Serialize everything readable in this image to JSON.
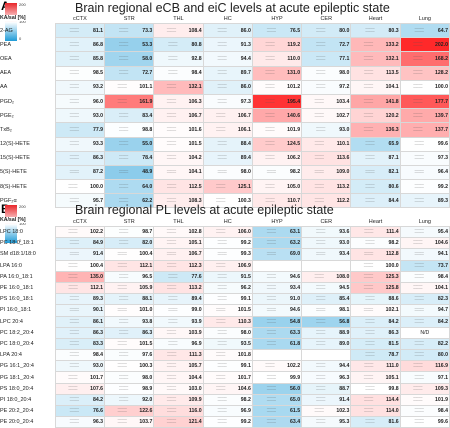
{
  "panelA": {
    "letter": "A",
    "title": "Brain regional eCB and eiC levels at acute epileptic state",
    "scale": {
      "max": "200",
      "mid": "100",
      "min": "0",
      "label": "KA/sal [%]"
    },
    "columns": [
      "cCTX",
      "STR",
      "THL",
      "HC",
      "HYP",
      "CER",
      "Heart",
      "Lung"
    ],
    "rows": [
      {
        "label": "2-AG",
        "values": [
          "81.1",
          "73.3",
          "108.4",
          "86.0",
          "76.5",
          "80.0",
          "80.3",
          "64.7"
        ]
      },
      {
        "label": "PEA",
        "values": [
          "86.8",
          "53.3",
          "80.8",
          "91.3",
          "119.2",
          "72.7",
          "133.2",
          "202.0"
        ]
      },
      {
        "label": "OEA",
        "values": [
          "85.8",
          "58.0",
          "92.8",
          "94.4",
          "110.0",
          "77.1",
          "132.1",
          "168.2"
        ]
      },
      {
        "label": "AEA",
        "values": [
          "98.5",
          "72.7",
          "98.4",
          "89.7",
          "131.0",
          "98.0",
          "113.5",
          "128.2"
        ]
      },
      {
        "label": "AA",
        "values": [
          "93.2",
          "101.1",
          "132.1",
          "86.0",
          "101.2",
          "97.2",
          "104.1",
          "100.0"
        ]
      },
      {
        "label": "PGD₂",
        "values": [
          "96.0",
          "161.9",
          "106.3",
          "97.3",
          "195.4",
          "103.4",
          "141.8",
          "177.7"
        ]
      },
      {
        "label": "PGE₂",
        "values": [
          "93.0",
          "83.4",
          "106.7",
          "106.7",
          "140.6",
          "102.7",
          "120.2",
          "139.7"
        ]
      },
      {
        "label": "TxB₂",
        "values": [
          "77.9",
          "98.8",
          "101.6",
          "106.1",
          "101.9",
          "93.0",
          "136.3",
          "137.7"
        ]
      },
      {
        "label": "12(S)-HETE",
        "values": [
          "93.3",
          "55.0",
          "101.5",
          "88.4",
          "124.5",
          "110.1",
          "65.9",
          "99.6"
        ]
      },
      {
        "label": "15(S)-HETE",
        "values": [
          "86.3",
          "78.4",
          "104.2",
          "89.4",
          "106.2",
          "113.6",
          "87.1",
          "97.3"
        ]
      },
      {
        "label": "5(S)-HETE",
        "values": [
          "87.2",
          "48.9",
          "104.1",
          "98.0",
          "98.2",
          "109.0",
          "82.1",
          "96.4"
        ]
      },
      {
        "label": "8(S)-HETE",
        "values": [
          "100.0",
          "64.0",
          "112.5",
          "125.1",
          "105.0",
          "113.2",
          "80.6",
          "99.2"
        ]
      },
      {
        "label": "PGF₂α",
        "values": [
          "95.7",
          "62.2",
          "108.3",
          "100.3",
          "110.7",
          "112.2",
          "84.4",
          "89.3"
        ]
      }
    ]
  },
  "panelB": {
    "letter": "B",
    "title": "Brain regional PL levels at acute epileptic state",
    "scale": {
      "max": "200",
      "mid": "100",
      "min": "0",
      "label": "KA/sal [%]"
    },
    "columns": [
      "cCTX",
      "STR",
      "THL",
      "HC",
      "HYP",
      "CER",
      "Heart",
      "Lung"
    ],
    "rows": [
      {
        "label": "LPC 18:0",
        "values": [
          "102.2",
          "98.7",
          "102.8",
          "106.0",
          "63.1",
          "93.6",
          "111.4",
          "95.4"
        ]
      },
      {
        "label": "PC 18:0_18:1",
        "values": [
          "84.9",
          "82.0",
          "105.1",
          "99.2",
          "63.2",
          "93.0",
          "98.2",
          "104.6"
        ]
      },
      {
        "label": "SM d18:1/18:0",
        "values": [
          "91.4",
          "100.4",
          "106.7",
          "99.3",
          "69.0",
          "93.4",
          "112.8",
          "94.1"
        ]
      },
      {
        "label": "LPA 16:0",
        "values": [
          "100.4",
          "112.1",
          "112.3",
          "106.9",
          "",
          "",
          "100.0",
          "73.7"
        ]
      },
      {
        "label": "PA 16:0_18:1",
        "values": [
          "135.0",
          "96.5",
          "77.6",
          "91.5",
          "94.6",
          "108.0",
          "125.3",
          "98.4"
        ]
      },
      {
        "label": "PE 16:0_18:1",
        "values": [
          "112.1",
          "105.9",
          "113.2",
          "96.2",
          "93.4",
          "94.5",
          "125.8",
          "104.1"
        ]
      },
      {
        "label": "PS 16:0_18:1",
        "values": [
          "89.3",
          "88.1",
          "89.4",
          "99.1",
          "91.0",
          "85.4",
          "88.6",
          "82.3"
        ]
      },
      {
        "label": "PI 16:0_18:1",
        "values": [
          "90.1",
          "101.0",
          "99.0",
          "101.5",
          "94.6",
          "98.1",
          "102.1",
          "94.7"
        ]
      },
      {
        "label": "LPC 20:4",
        "values": [
          "86.1",
          "93.8",
          "93.9",
          "110.3",
          "54.8",
          "56.8",
          "84.2",
          "84.2"
        ]
      },
      {
        "label": "PC 18:2_20:4",
        "values": [
          "86.3",
          "86.3",
          "103.9",
          "98.0",
          "63.3",
          "88.9",
          "86.3",
          "N/D"
        ]
      },
      {
        "label": "PC 18:0_20:4",
        "values": [
          "83.3",
          "101.5",
          "96.9",
          "93.5",
          "61.8",
          "89.0",
          "81.5",
          "82.2"
        ]
      },
      {
        "label": "LPA 20:4",
        "values": [
          "98.4",
          "97.6",
          "111.3",
          "101.8",
          "",
          "",
          "78.7",
          "80.0"
        ]
      },
      {
        "label": "PG 16:1_20:4",
        "values": [
          "93.0",
          "100.3",
          "105.7",
          "99.1",
          "102.2",
          "94.4",
          "111.0",
          "116.9"
        ]
      },
      {
        "label": "PG 18:1_20:4",
        "values": [
          "101.7",
          "98.0",
          "104.4",
          "101.7",
          "99.9",
          "96.3",
          "105.1",
          "97.1"
        ]
      },
      {
        "label": "PS 18:0_20:4",
        "values": [
          "107.6",
          "98.9",
          "103.0",
          "104.6",
          "56.0",
          "88.7",
          "99.8",
          "109.3"
        ]
      },
      {
        "label": "PI 18:0_20:4",
        "values": [
          "84.2",
          "92.0",
          "109.9",
          "98.2",
          "65.0",
          "91.4",
          "114.4",
          "101.9"
        ]
      },
      {
        "label": "PE 20:2_20:4",
        "values": [
          "76.6",
          "122.6",
          "116.0",
          "96.9",
          "61.5",
          "102.3",
          "114.0",
          "98.4"
        ]
      },
      {
        "label": "PE 20:0_20:4",
        "values": [
          "96.3",
          "103.7",
          "121.4",
          "99.2",
          "63.4",
          "95.3",
          "81.6",
          "99.6"
        ]
      }
    ]
  }
}
